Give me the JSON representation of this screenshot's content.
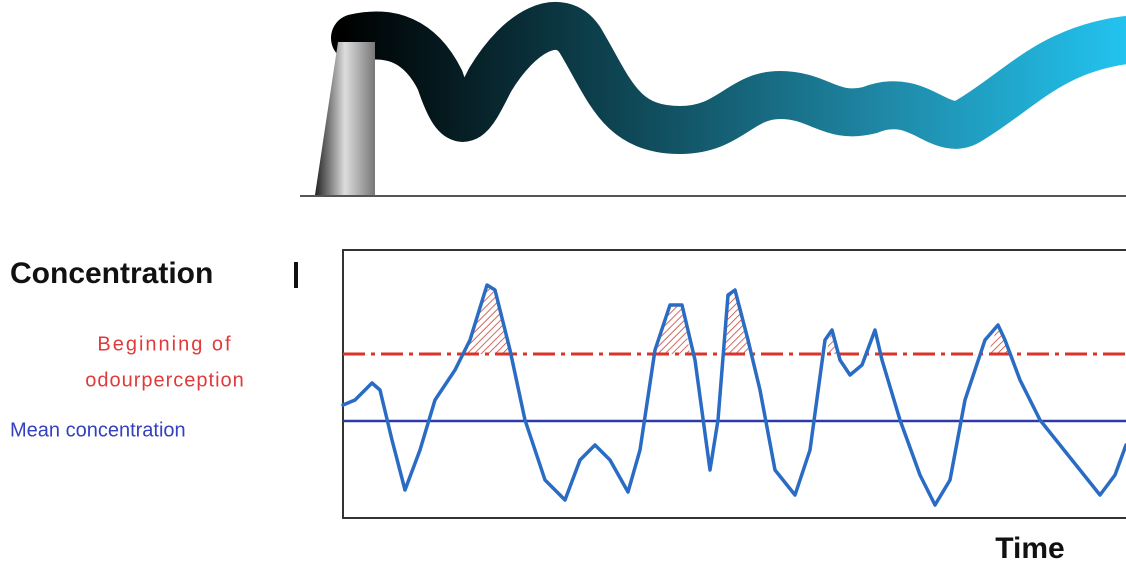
{
  "y_label": "Concentration",
  "threshold_label": [
    "Beginning of",
    "odourperception"
  ],
  "mean_label": "Mean concentration",
  "x_label": "Time"
}
